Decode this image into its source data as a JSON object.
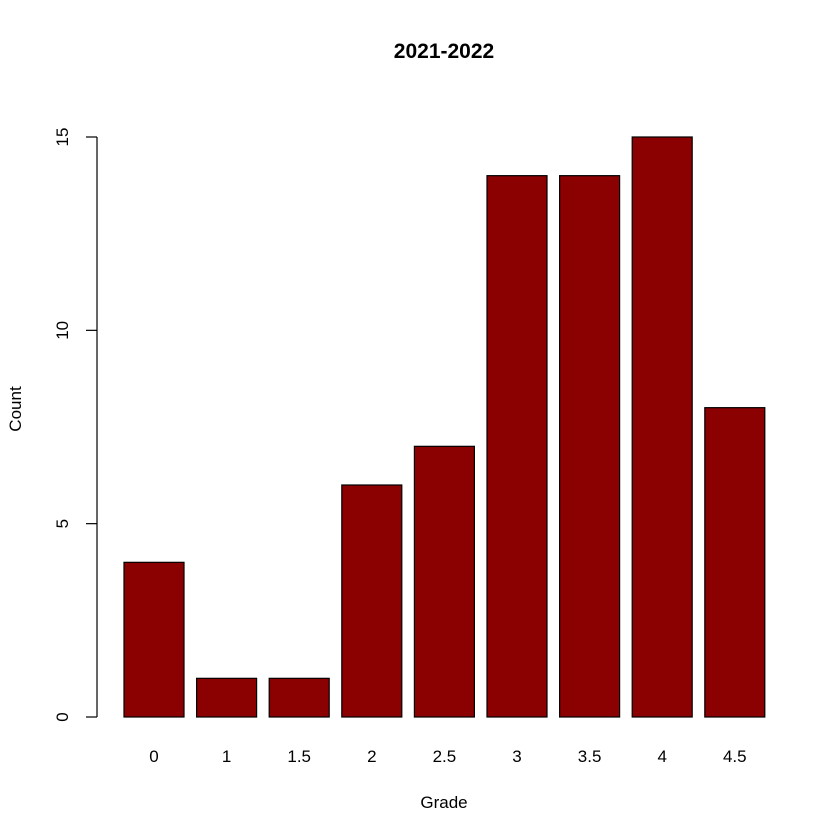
{
  "chart_data": {
    "type": "bar",
    "title": "2021-2022",
    "xlabel": "Grade",
    "ylabel": "Count",
    "categories": [
      "0",
      "1",
      "1.5",
      "2",
      "2.5",
      "3",
      "3.5",
      "4",
      "4.5"
    ],
    "values": [
      4,
      1,
      1,
      6,
      7,
      14,
      14,
      15,
      8
    ],
    "ylim": [
      0,
      15
    ],
    "yticks": [
      0,
      5,
      10,
      15
    ],
    "ytick_labels": [
      "0",
      "5",
      "10",
      "15"
    ],
    "bar_color": "#8B0000",
    "grid": false,
    "legend": "none"
  }
}
